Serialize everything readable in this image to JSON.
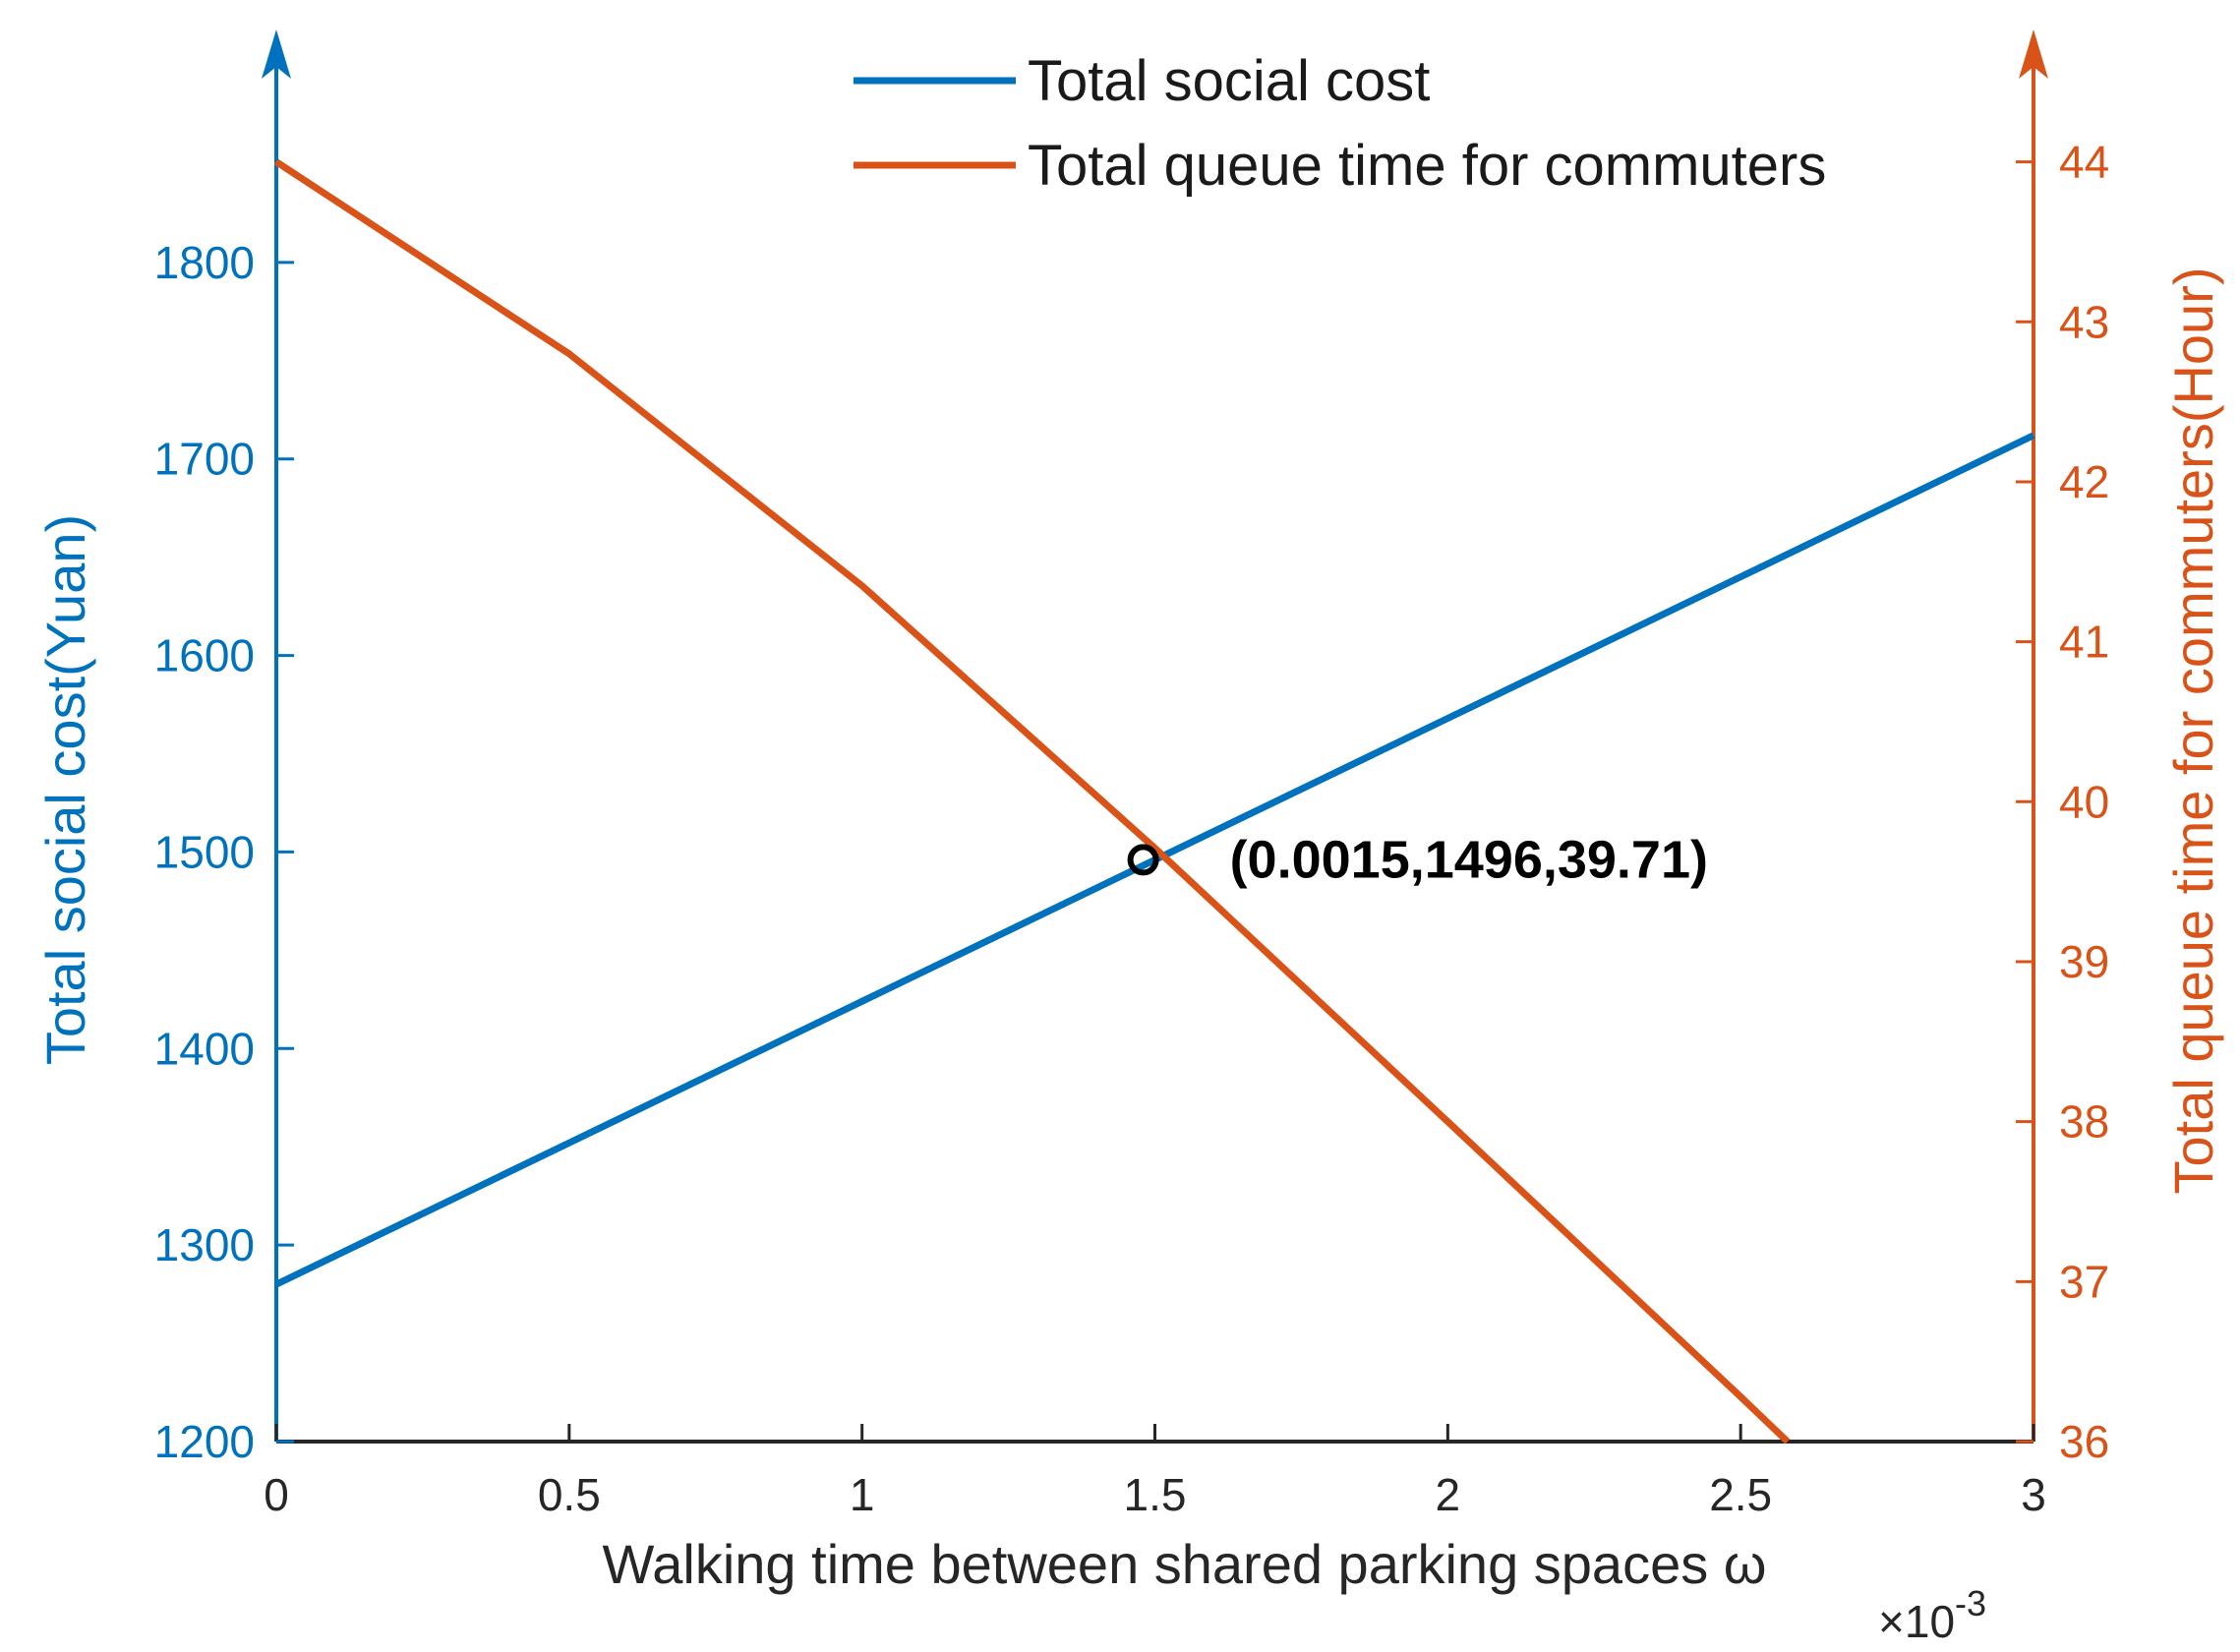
{
  "chart_data": {
    "type": "line",
    "title": "",
    "xlabel": "Walking time between shared parking spaces ω",
    "x_exponent_label": "×10",
    "x_exponent_power": "-3",
    "ylabel_left": "Total social cost(Yuan)",
    "ylabel_right": "Total queue time for commuters(Hour)",
    "xlim": [
      0,
      3
    ],
    "ylim_left": [
      1200,
      1900
    ],
    "ylim_right": [
      36,
      44.6
    ],
    "x_ticks": [
      0,
      0.5,
      1,
      1.5,
      2,
      2.5,
      3
    ],
    "x_tick_labels": [
      "0",
      "0.5",
      "1",
      "1.5",
      "2",
      "2.5",
      "3"
    ],
    "y_left_ticks": [
      1200,
      1300,
      1400,
      1500,
      1600,
      1700,
      1800
    ],
    "y_left_tick_labels": [
      "1200",
      "1300",
      "1400",
      "1500",
      "1600",
      "1700",
      "1800"
    ],
    "y_right_ticks": [
      36,
      37,
      38,
      39,
      40,
      41,
      42,
      43,
      44
    ],
    "y_right_tick_labels": [
      "36",
      "37",
      "38",
      "39",
      "40",
      "41",
      "42",
      "43",
      "44"
    ],
    "series": [
      {
        "name": "Total social cost",
        "axis": "left",
        "color": "#0072BD",
        "x": [
          0,
          0.5,
          1,
          1.5,
          2,
          2.5,
          3
        ],
        "values": [
          1280,
          1352,
          1424,
          1496,
          1568,
          1640,
          1712
        ]
      },
      {
        "name": "Total queue time for commuters",
        "axis": "right",
        "color": "#D95319",
        "x": [
          0,
          0.5,
          1,
          1.5,
          2,
          2.5,
          2.58
        ],
        "values": [
          44.0,
          42.8,
          41.35,
          39.71,
          38.0,
          36.28,
          36.0
        ]
      }
    ],
    "legend_position": "top-center",
    "annotation": {
      "text": "(0.0015,1496,39.71)",
      "x": 1.48,
      "y": 1496
    },
    "colors": {
      "left_axis": "#0072BD",
      "right_axis": "#D95319",
      "x_axis": "#262626"
    }
  }
}
